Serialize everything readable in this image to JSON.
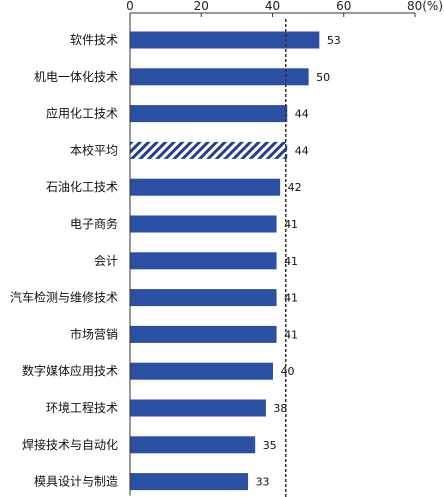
{
  "chart_data": {
    "type": "bar",
    "orientation": "horizontal",
    "categories": [
      "软件技术",
      "机电一体化技术",
      "应用化工技术",
      "本校平均",
      "石油化工技术",
      "电子商务",
      "会计",
      "汽车检测与维修技术",
      "市场营销",
      "数字媒体应用技术",
      "环境工程技术",
      "焊接技术与自动化",
      "模具设计与制造"
    ],
    "values": [
      53,
      50,
      44,
      44,
      42,
      41,
      41,
      41,
      41,
      40,
      38,
      35,
      33
    ],
    "highlight_category": "本校平均",
    "reference_line": 44,
    "xlim": [
      0,
      80
    ],
    "xticks": [
      "0",
      "20",
      "40",
      "60",
      "80(%)"
    ],
    "axis_position": "top",
    "grid": false,
    "colors": {
      "bar": "#2b4fa3",
      "highlight": "#1f3f8f",
      "axis": "#333333"
    }
  }
}
